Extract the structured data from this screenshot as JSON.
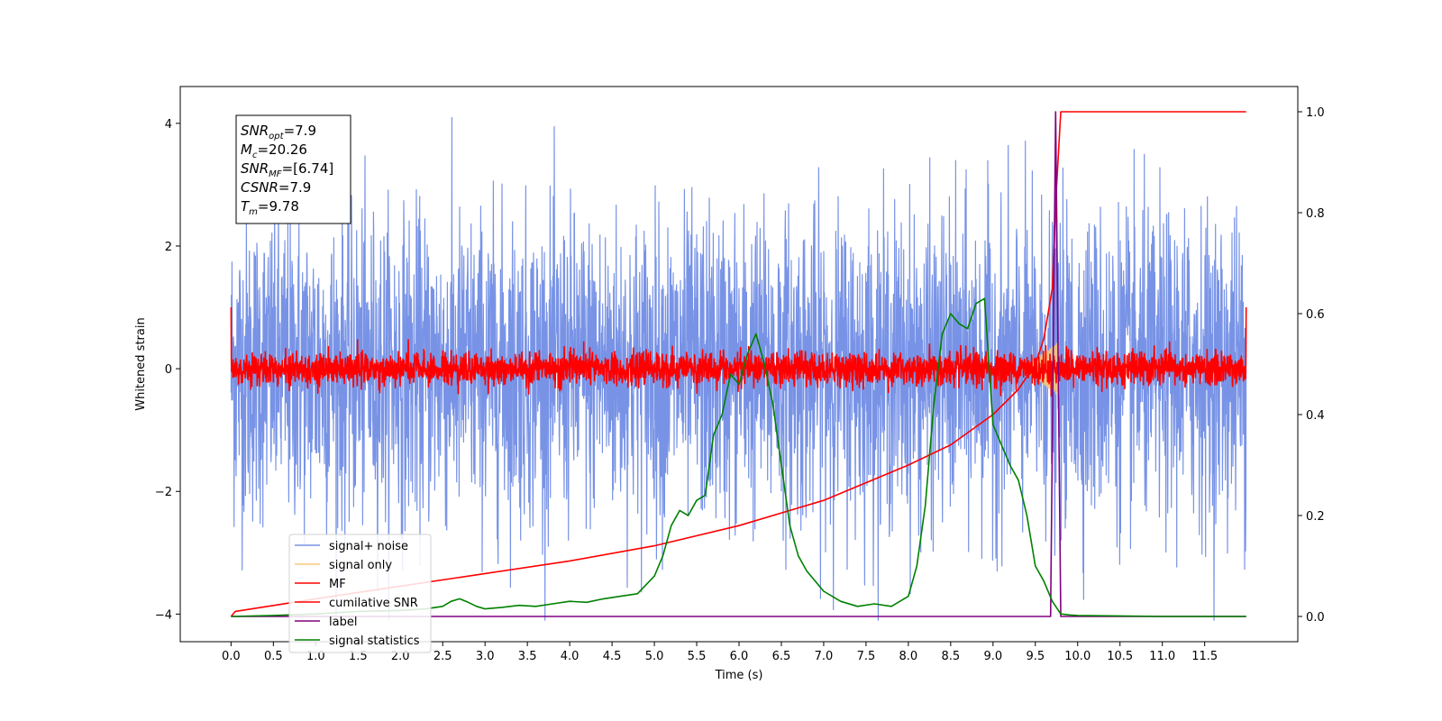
{
  "chart_data": {
    "type": "line",
    "xlabel": "Time (s)",
    "ylabel": "Whitened strain",
    "xlim": [
      -0.6,
      12.6
    ],
    "ylim": [
      -4.45,
      4.6
    ],
    "y2lim": [
      -0.05,
      1.05
    ],
    "x_ticks": [
      0.0,
      0.5,
      1.0,
      1.5,
      2.0,
      2.5,
      3.0,
      3.5,
      4.0,
      4.5,
      5.0,
      5.5,
      6.0,
      6.5,
      7.0,
      7.5,
      8.0,
      8.5,
      9.0,
      9.5,
      10.0,
      10.5,
      11.0,
      11.5
    ],
    "x_tick_labels": [
      "0.0",
      "0.5",
      "1.0",
      "1.5",
      "2.0",
      "2.5",
      "3.0",
      "3.5",
      "4.0",
      "4.5",
      "5.0",
      "5.5",
      "6.0",
      "6.5",
      "7.0",
      "7.5",
      "8.0",
      "8.5",
      "9.0",
      "9.5",
      "10.0",
      "10.5",
      "11.0",
      "11.5"
    ],
    "y_ticks": [
      -4,
      -2,
      0,
      2,
      4
    ],
    "y_tick_labels": [
      "−4",
      "−2",
      "0",
      "2",
      "4"
    ],
    "y2_ticks": [
      0.0,
      0.2,
      0.4,
      0.6,
      0.8,
      1.0
    ],
    "y2_tick_labels": [
      "0.0",
      "0.2",
      "0.4",
      "0.6",
      "0.8",
      "1.0"
    ],
    "grid": false,
    "legend_position": "lower-left",
    "annotation": {
      "lines": [
        {
          "main": "SNR",
          "sub": "opt",
          "rest": "=7.9"
        },
        {
          "main": "M",
          "sub": "c",
          "rest": "=20.26"
        },
        {
          "main": "SNR",
          "sub": "MF",
          "rest": "=[6.74]"
        },
        {
          "main": "CSNR",
          "sub": "",
          "rest": "=7.9"
        },
        {
          "main": "T",
          "sub": "m",
          "rest": "=9.78"
        }
      ]
    },
    "series": [
      {
        "name": "signal+ noise",
        "color": "#7893e6",
        "axis": "left",
        "style": "noise",
        "x_range": [
          0.0,
          11.99
        ],
        "amplitude": 1.25
      },
      {
        "name": "signal only",
        "color": "#f5c87a",
        "axis": "left",
        "style": "chirp",
        "x_range": [
          9.3,
          9.78
        ],
        "amplitude": 0.45
      },
      {
        "name": "MF",
        "color": "#ff0000",
        "axis": "left",
        "style": "noise",
        "x_range": [
          0.0,
          11.99
        ],
        "amplitude": 0.22
      },
      {
        "name": "cumilative SNR",
        "color": "#ff0000",
        "axis": "right",
        "x": [
          0.0,
          0.05,
          1.0,
          2.0,
          3.0,
          4.0,
          5.0,
          6.0,
          7.0,
          8.0,
          8.5,
          9.0,
          9.3,
          9.5,
          9.6,
          9.7,
          9.75,
          9.8,
          10.0,
          11.0,
          11.99
        ],
        "y": [
          0.0,
          0.01,
          0.035,
          0.06,
          0.085,
          0.11,
          0.14,
          0.18,
          0.23,
          0.3,
          0.34,
          0.4,
          0.45,
          0.5,
          0.55,
          0.65,
          0.85,
          1.0,
          1.0,
          1.0,
          1.0
        ]
      },
      {
        "name": "label",
        "color": "#800080",
        "axis": "right",
        "x": [
          0.0,
          9.68,
          9.74,
          9.8,
          11.99
        ],
        "y": [
          0.0,
          0.0,
          1.0,
          0.0,
          0.0
        ]
      },
      {
        "name": "signal statistics",
        "color": "#008000",
        "axis": "right",
        "x": [
          0.0,
          0.5,
          1.0,
          1.5,
          2.0,
          2.3,
          2.5,
          2.6,
          2.7,
          2.8,
          2.9,
          3.0,
          3.2,
          3.4,
          3.6,
          3.8,
          4.0,
          4.2,
          4.4,
          4.6,
          4.8,
          5.0,
          5.1,
          5.2,
          5.3,
          5.4,
          5.5,
          5.6,
          5.7,
          5.8,
          5.9,
          6.0,
          6.1,
          6.2,
          6.3,
          6.4,
          6.5,
          6.6,
          6.7,
          6.8,
          7.0,
          7.2,
          7.4,
          7.6,
          7.8,
          8.0,
          8.1,
          8.2,
          8.3,
          8.4,
          8.5,
          8.6,
          8.7,
          8.8,
          8.9,
          9.0,
          9.1,
          9.2,
          9.3,
          9.4,
          9.5,
          9.6,
          9.7,
          9.8,
          9.9,
          10.0,
          10.5,
          11.0,
          11.5,
          11.99
        ],
        "y": [
          0.0,
          0.002,
          0.005,
          0.01,
          0.012,
          0.015,
          0.02,
          0.03,
          0.035,
          0.028,
          0.02,
          0.015,
          0.018,
          0.022,
          0.02,
          0.025,
          0.03,
          0.028,
          0.035,
          0.04,
          0.045,
          0.08,
          0.12,
          0.18,
          0.21,
          0.2,
          0.23,
          0.24,
          0.36,
          0.4,
          0.48,
          0.46,
          0.52,
          0.56,
          0.5,
          0.42,
          0.3,
          0.18,
          0.12,
          0.09,
          0.05,
          0.03,
          0.02,
          0.025,
          0.02,
          0.04,
          0.1,
          0.22,
          0.42,
          0.56,
          0.6,
          0.58,
          0.57,
          0.62,
          0.63,
          0.38,
          0.34,
          0.3,
          0.27,
          0.2,
          0.1,
          0.07,
          0.03,
          0.005,
          0.003,
          0.002,
          0.001,
          0.0,
          0.0,
          0.0
        ]
      }
    ]
  }
}
